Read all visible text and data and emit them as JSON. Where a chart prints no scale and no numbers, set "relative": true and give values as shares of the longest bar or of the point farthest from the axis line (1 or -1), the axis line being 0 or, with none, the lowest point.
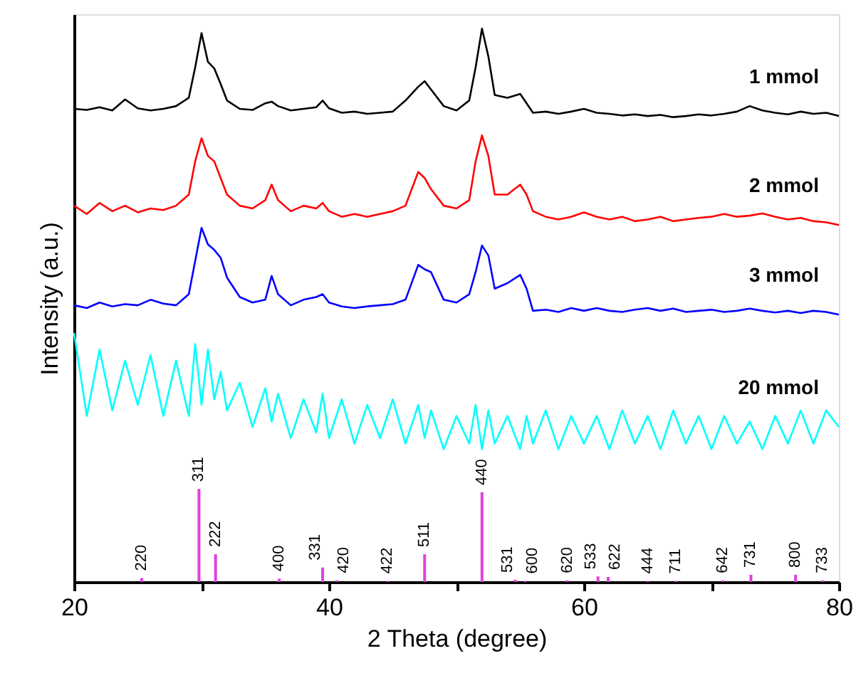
{
  "chart_data": {
    "type": "line",
    "relative": true,
    "xlabel": "2 Theta (degree)",
    "ylabel": "Intensity (a.u.)",
    "xlim": [
      20,
      80
    ],
    "xticks": [
      20,
      {
        "value": 30,
        "label": null
      },
      40,
      {
        "value": 50,
        "label": null
      },
      60,
      {
        "value": 70,
        "label": null
      },
      80
    ],
    "grid": false,
    "x": [
      20,
      21,
      22,
      23,
      24,
      25,
      26,
      27,
      28,
      29,
      29.5,
      30,
      30.5,
      31,
      31.5,
      32,
      33,
      34,
      35,
      35.5,
      36,
      37,
      38,
      39,
      39.5,
      40,
      41,
      42,
      43,
      44,
      45,
      46,
      47,
      47.5,
      48,
      49,
      50,
      51,
      51.5,
      52,
      52.5,
      53,
      54,
      55,
      55.5,
      56,
      57,
      58,
      59,
      60,
      61,
      62,
      63,
      64,
      65,
      66,
      67,
      68,
      69,
      70,
      71,
      72,
      73,
      74,
      75,
      76,
      77,
      78,
      79,
      80
    ],
    "series": [
      {
        "name": "1 mmol",
        "color": "#000000",
        "values": [
          0.855,
          0.853,
          0.858,
          0.852,
          0.872,
          0.856,
          0.852,
          0.855,
          0.86,
          0.875,
          0.93,
          0.992,
          0.94,
          0.928,
          0.9,
          0.87,
          0.855,
          0.853,
          0.865,
          0.868,
          0.86,
          0.852,
          0.855,
          0.858,
          0.87,
          0.856,
          0.848,
          0.85,
          0.846,
          0.848,
          0.85,
          0.87,
          0.895,
          0.905,
          0.89,
          0.86,
          0.852,
          0.87,
          0.93,
          1.0,
          0.95,
          0.88,
          0.875,
          0.882,
          0.865,
          0.848,
          0.85,
          0.846,
          0.85,
          0.855,
          0.848,
          0.846,
          0.843,
          0.845,
          0.842,
          0.844,
          0.84,
          0.842,
          0.845,
          0.843,
          0.846,
          0.85,
          0.86,
          0.852,
          0.848,
          0.845,
          0.85,
          0.846,
          0.848,
          0.842
        ]
      },
      {
        "name": "2 mmol",
        "color": "#ff0000",
        "values": [
          0.68,
          0.665,
          0.685,
          0.67,
          0.68,
          0.668,
          0.675,
          0.672,
          0.68,
          0.7,
          0.76,
          0.802,
          0.77,
          0.76,
          0.73,
          0.7,
          0.68,
          0.675,
          0.69,
          0.718,
          0.69,
          0.67,
          0.68,
          0.675,
          0.685,
          0.67,
          0.66,
          0.665,
          0.66,
          0.665,
          0.67,
          0.68,
          0.741,
          0.73,
          0.71,
          0.68,
          0.675,
          0.69,
          0.76,
          0.807,
          0.77,
          0.7,
          0.7,
          0.718,
          0.7,
          0.67,
          0.66,
          0.655,
          0.66,
          0.668,
          0.66,
          0.655,
          0.66,
          0.652,
          0.655,
          0.66,
          0.652,
          0.655,
          0.658,
          0.66,
          0.665,
          0.66,
          0.662,
          0.666,
          0.66,
          0.655,
          0.658,
          0.652,
          0.65,
          0.645
        ]
      },
      {
        "name": "3 mmol",
        "color": "#0000ff",
        "values": [
          0.5,
          0.495,
          0.505,
          0.498,
          0.502,
          0.5,
          0.51,
          0.503,
          0.5,
          0.52,
          0.58,
          0.64,
          0.61,
          0.6,
          0.586,
          0.55,
          0.515,
          0.505,
          0.51,
          0.553,
          0.52,
          0.5,
          0.51,
          0.515,
          0.52,
          0.505,
          0.498,
          0.495,
          0.498,
          0.5,
          0.502,
          0.51,
          0.573,
          0.565,
          0.56,
          0.51,
          0.505,
          0.52,
          0.56,
          0.608,
          0.59,
          0.53,
          0.54,
          0.555,
          0.53,
          0.49,
          0.492,
          0.488,
          0.495,
          0.49,
          0.495,
          0.49,
          0.488,
          0.492,
          0.495,
          0.49,
          0.494,
          0.488,
          0.49,
          0.492,
          0.488,
          0.49,
          0.494,
          0.49,
          0.487,
          0.49,
          0.486,
          0.49,
          0.488,
          0.483
        ]
      },
      {
        "name": "20 mmol",
        "color": "#00ffff",
        "values": [
          0.45,
          0.3,
          0.42,
          0.31,
          0.4,
          0.32,
          0.41,
          0.3,
          0.4,
          0.3,
          0.43,
          0.32,
          0.42,
          0.33,
          0.38,
          0.31,
          0.36,
          0.28,
          0.35,
          0.29,
          0.34,
          0.26,
          0.33,
          0.27,
          0.34,
          0.26,
          0.33,
          0.25,
          0.32,
          0.26,
          0.33,
          0.25,
          0.32,
          0.26,
          0.31,
          0.24,
          0.3,
          0.25,
          0.32,
          0.24,
          0.31,
          0.25,
          0.3,
          0.24,
          0.3,
          0.25,
          0.31,
          0.24,
          0.3,
          0.25,
          0.3,
          0.24,
          0.31,
          0.25,
          0.3,
          0.24,
          0.31,
          0.25,
          0.3,
          0.24,
          0.3,
          0.25,
          0.29,
          0.24,
          0.3,
          0.25,
          0.31,
          0.25,
          0.31,
          0.28
        ]
      },
      {
        "type": "bar",
        "color": "#e040e0",
        "x": [
          25.3,
          29.8,
          31.1,
          36.1,
          39.5,
          40.6,
          44.6,
          47.5,
          52.0,
          54.6,
          55.4,
          58.7,
          61.1,
          61.9,
          65.0,
          67.2,
          70.9,
          73.1,
          76.6,
          78.7
        ],
        "values": [
          0.007,
          0.168,
          0.05,
          0.006,
          0.026,
          0.003,
          0.002,
          0.05,
          0.162,
          0.004,
          0.002,
          0.003,
          0.01,
          0.009,
          0.002,
          0.002,
          0.003,
          0.013,
          0.013,
          0.003
        ]
      }
    ],
    "annotations": [
      {
        "text": "220",
        "x": 25.3,
        "y": 0.007
      },
      {
        "text": "311",
        "x": 29.8,
        "y": 0.168
      },
      {
        "text": "222",
        "x": 31.1,
        "y": 0.05
      },
      {
        "text": "400",
        "x": 36.1,
        "y": 0.006
      },
      {
        "text": "331",
        "x": 39.5,
        "y": 0.026
      },
      {
        "text": "420",
        "x": 40.6,
        "y": 0.003
      },
      {
        "text": "422",
        "x": 44.6,
        "y": 0.002
      },
      {
        "text": "511",
        "x": 47.5,
        "y": 0.05
      },
      {
        "text": "440",
        "x": 52.0,
        "y": 0.162
      },
      {
        "text": "531",
        "x": 54.6,
        "y": 0.004
      },
      {
        "text": "600",
        "x": 55.4,
        "y": 0.002
      },
      {
        "text": "620",
        "x": 58.7,
        "y": 0.003
      },
      {
        "text": "533",
        "x": 61.1,
        "y": 0.01
      },
      {
        "text": "622",
        "x": 61.9,
        "y": 0.009
      },
      {
        "text": "444",
        "x": 65.0,
        "y": 0.002
      },
      {
        "text": "711",
        "x": 67.2,
        "y": 0.002
      },
      {
        "text": "642",
        "x": 70.9,
        "y": 0.003
      },
      {
        "text": "731",
        "x": 73.1,
        "y": 0.013
      },
      {
        "text": "800",
        "x": 76.6,
        "y": 0.013
      },
      {
        "text": "733",
        "x": 78.7,
        "y": 0.003
      }
    ]
  }
}
